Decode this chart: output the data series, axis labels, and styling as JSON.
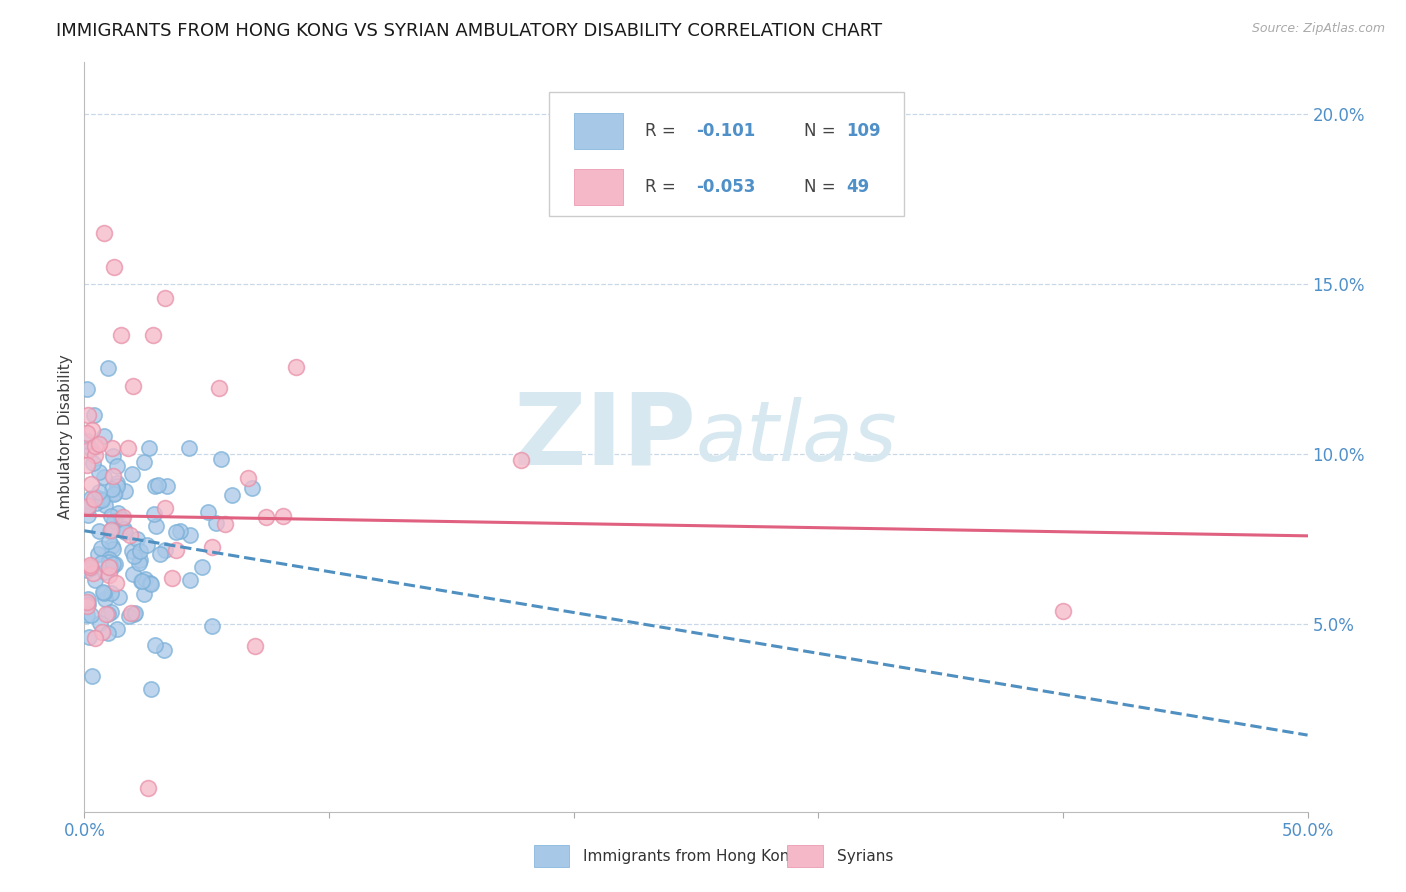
{
  "title": "IMMIGRANTS FROM HONG KONG VS SYRIAN AMBULATORY DISABILITY CORRELATION CHART",
  "source": "Source: ZipAtlas.com",
  "ylabel": "Ambulatory Disability",
  "hk_color": "#a8c8e8",
  "hk_edge_color": "#7ab0d8",
  "syrian_color": "#f5b8c8",
  "syrian_edge_color": "#e890a8",
  "hk_line_color": "#5090c0",
  "syrian_line_color": "#e06080",
  "legend_hk_r": "-0.101",
  "legend_hk_n": "109",
  "legend_syrian_r": "-0.053",
  "legend_syrian_n": "49",
  "watermark_color": "#d8e8f0",
  "grid_color": "#c8d8e8",
  "title_color": "#1a1a1a",
  "axis_color": "#5090c8",
  "ylabel_color": "#404040",
  "legend_text_color": "#444444",
  "xlim": [
    0.0,
    0.5
  ],
  "ylim": [
    -0.005,
    0.215
  ],
  "ytick_pos": [
    0.05,
    0.1,
    0.15,
    0.2
  ],
  "ytick_labels": [
    "5.0%",
    "10.0%",
    "15.0%",
    "20.0%"
  ],
  "xtick_pos": [
    0.0,
    0.1,
    0.2,
    0.3,
    0.4,
    0.5
  ],
  "xtick_labels": [
    "0.0%",
    "",
    "",
    "",
    "",
    "50.0%"
  ],
  "hk_trend_intercept": 0.0775,
  "hk_trend_slope": -0.12,
  "syrian_trend_intercept": 0.082,
  "syrian_trend_slope": -0.012
}
